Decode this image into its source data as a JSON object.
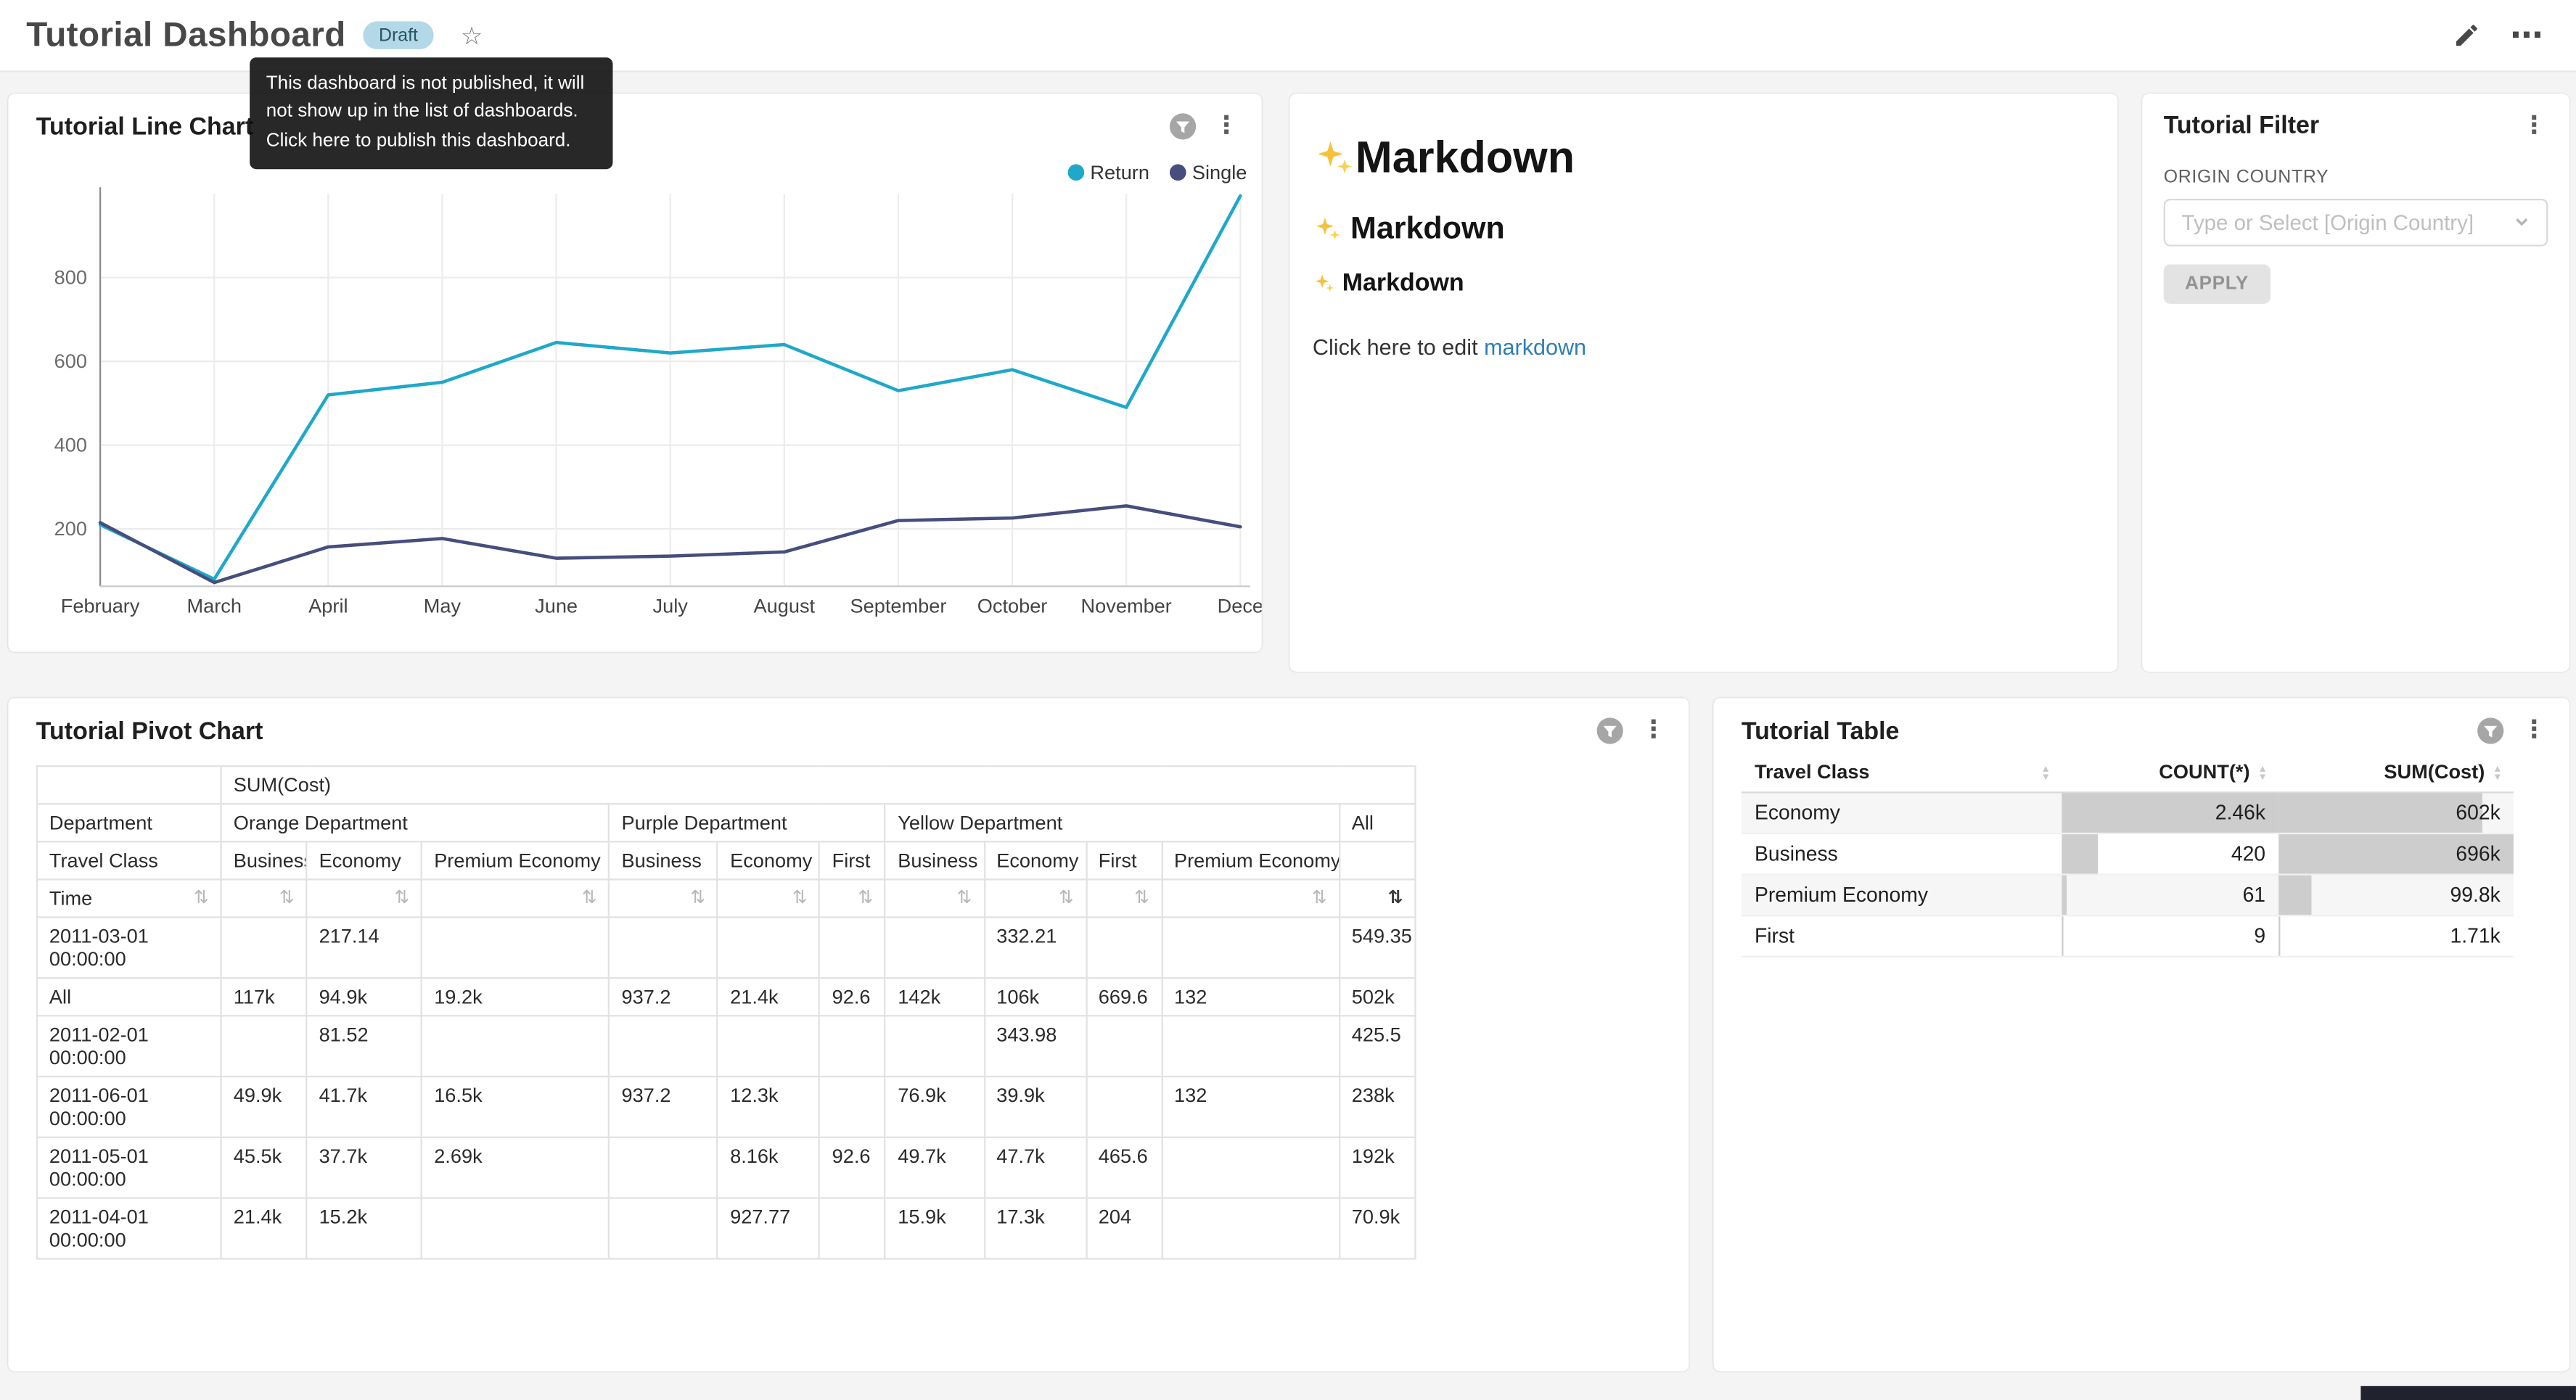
{
  "header": {
    "title": "Tutorial Dashboard",
    "badge": "Draft",
    "tooltip": "This dashboard is not published, it will not show up in the list of dashboards. Click here to publish this dashboard."
  },
  "icons": {
    "star": "☆",
    "kebab": "⋮",
    "more": "⋯",
    "sort_both": "⇅",
    "caret_up": "▴",
    "caret_down": "▾",
    "sparkles": "✨"
  },
  "colors": {
    "series_return": "#1FA8C9",
    "series_single": "#454E7C",
    "link": "#2f7fb5",
    "draft_badge_bg": "#b3d9e8",
    "table_bar": "#cdcdcd"
  },
  "line_chart_card": {
    "title": "Tutorial Line Chart"
  },
  "chart_data": {
    "type": "line",
    "title": "Tutorial Line Chart",
    "x": [
      "February",
      "March",
      "April",
      "May",
      "June",
      "July",
      "August",
      "September",
      "October",
      "November",
      "December"
    ],
    "x_tick_labels": [
      "February",
      "March",
      "April",
      "May",
      "June",
      "July",
      "August",
      "September",
      "October",
      "November",
      "Dece"
    ],
    "series": [
      {
        "name": "Return",
        "color": "#1FA8C9",
        "values": [
          210,
          80,
          520,
          550,
          645,
          620,
          640,
          530,
          580,
          490,
          995
        ]
      },
      {
        "name": "Single",
        "color": "#454E7C",
        "values": [
          215,
          72,
          157,
          177,
          130,
          135,
          145,
          220,
          226,
          255,
          205
        ]
      }
    ],
    "yticks": [
      200,
      400,
      600,
      800
    ],
    "ylim": [
      63,
      1000
    ],
    "grid": true,
    "legend_position": "top-right"
  },
  "markdown_card": {
    "h1": "Markdown",
    "h2": "Markdown",
    "h3": "Markdown",
    "paragraph_prefix": "Click here to edit ",
    "link_text": "markdown"
  },
  "filter_card": {
    "title": "Tutorial Filter",
    "field_label": "ORIGIN COUNTRY",
    "select_placeholder": "Type or Select [Origin Country]",
    "apply_label": "APPLY"
  },
  "pivot_card": {
    "title": "Tutorial Pivot Chart",
    "measure_label": "SUM(Cost)",
    "col_dimension": "Department",
    "col_subdimension": "Travel Class",
    "row_dimension": "Time",
    "groups": [
      {
        "name": "Orange Department",
        "cols": [
          "Business",
          "Economy",
          "Premium Economy"
        ]
      },
      {
        "name": "Purple Department",
        "cols": [
          "Business",
          "Economy",
          "First"
        ]
      },
      {
        "name": "Yellow Department",
        "cols": [
          "Business",
          "Economy",
          "First",
          "Premium Economy"
        ]
      },
      {
        "name": "All",
        "cols": [
          ""
        ]
      }
    ],
    "rows": [
      {
        "time": "2011-03-01 00:00:00",
        "values": [
          "",
          "217.14",
          "",
          "",
          "",
          "",
          "",
          "332.21",
          "",
          "",
          "549.35"
        ]
      },
      {
        "time": "All",
        "values": [
          "117k",
          "94.9k",
          "19.2k",
          "937.2",
          "21.4k",
          "92.6",
          "142k",
          "106k",
          "669.6",
          "132",
          "502k"
        ]
      },
      {
        "time": "2011-02-01 00:00:00",
        "values": [
          "",
          "81.52",
          "",
          "",
          "",
          "",
          "",
          "343.98",
          "",
          "",
          "425.5"
        ]
      },
      {
        "time": "2011-06-01 00:00:00",
        "values": [
          "49.9k",
          "41.7k",
          "16.5k",
          "937.2",
          "12.3k",
          "",
          "76.9k",
          "39.9k",
          "",
          "132",
          "238k"
        ]
      },
      {
        "time": "2011-05-01 00:00:00",
        "values": [
          "45.5k",
          "37.7k",
          "2.69k",
          "",
          "8.16k",
          "92.6",
          "49.7k",
          "47.7k",
          "465.6",
          "",
          "192k"
        ]
      },
      {
        "time": "2011-04-01 00:00:00",
        "values": [
          "21.4k",
          "15.2k",
          "",
          "",
          "927.77",
          "",
          "15.9k",
          "17.3k",
          "204",
          "",
          "70.9k"
        ]
      }
    ]
  },
  "table_card": {
    "title": "Tutorial Table",
    "columns": [
      "Travel Class",
      "COUNT(*)",
      "SUM(Cost)"
    ],
    "rows": [
      {
        "travel_class": "Economy",
        "count": "2.46k",
        "count_pct": 100,
        "sum": "602k",
        "sum_pct": 86.5
      },
      {
        "travel_class": "Business",
        "count": "420",
        "count_pct": 17,
        "sum": "696k",
        "sum_pct": 100
      },
      {
        "travel_class": "Premium Economy",
        "count": "61",
        "count_pct": 2.5,
        "sum": "99.8k",
        "sum_pct": 14.3
      },
      {
        "travel_class": "First",
        "count": "9",
        "count_pct": 0.5,
        "sum": "1.71k",
        "sum_pct": 0.4
      }
    ]
  }
}
